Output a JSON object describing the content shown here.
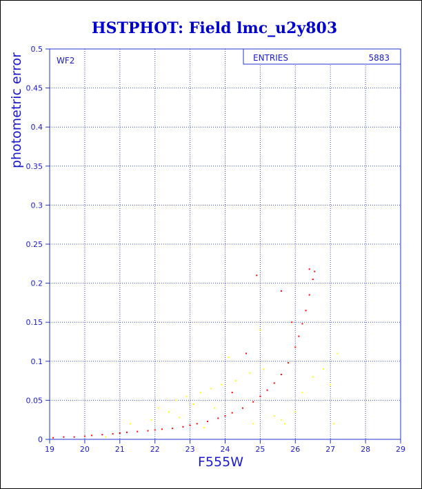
{
  "chart_data": {
    "type": "scatter",
    "title": "HSTPHOT: Field lmc_u2y803",
    "xlabel": "F555W",
    "ylabel": "photometric error",
    "xlim": [
      19,
      29
    ],
    "ylim": [
      0,
      0.5
    ],
    "xticks": [
      "19",
      "20",
      "21",
      "22",
      "23",
      "24",
      "25",
      "26",
      "27",
      "28",
      "29"
    ],
    "yticks": [
      "0",
      "0.05",
      "0.1",
      "0.15",
      "0.2",
      "0.25",
      "0.3",
      "0.35",
      "0.4",
      "0.45",
      "0.5"
    ],
    "grid": "dotted",
    "annotation": "WF2",
    "stats_box": {
      "label": "ENTRIES",
      "value": "5883"
    },
    "series": [
      {
        "color": "#ff0000",
        "points": [
          [
            19.1,
            0.002
          ],
          [
            19.4,
            0.003
          ],
          [
            19.7,
            0.003
          ],
          [
            20.0,
            0.004
          ],
          [
            20.2,
            0.005
          ],
          [
            20.5,
            0.006
          ],
          [
            20.8,
            0.007
          ],
          [
            21.0,
            0.008
          ],
          [
            21.2,
            0.009
          ],
          [
            21.5,
            0.01
          ],
          [
            21.8,
            0.011
          ],
          [
            22.0,
            0.012
          ],
          [
            22.2,
            0.013
          ],
          [
            22.5,
            0.014
          ],
          [
            22.8,
            0.016
          ],
          [
            23.0,
            0.018
          ],
          [
            23.2,
            0.02
          ],
          [
            23.5,
            0.023
          ],
          [
            23.8,
            0.027
          ],
          [
            24.0,
            0.03
          ],
          [
            24.2,
            0.034
          ],
          [
            24.5,
            0.04
          ],
          [
            24.8,
            0.048
          ],
          [
            25.0,
            0.055
          ],
          [
            25.2,
            0.063
          ],
          [
            25.4,
            0.072
          ],
          [
            25.6,
            0.083
          ],
          [
            25.8,
            0.098
          ],
          [
            26.0,
            0.118
          ],
          [
            26.1,
            0.132
          ],
          [
            26.2,
            0.148
          ],
          [
            26.3,
            0.165
          ],
          [
            26.4,
            0.185
          ],
          [
            26.5,
            0.205
          ],
          [
            26.55,
            0.215
          ],
          [
            24.9,
            0.21
          ],
          [
            25.6,
            0.19
          ],
          [
            25.9,
            0.15
          ],
          [
            24.2,
            0.06
          ],
          [
            24.6,
            0.11
          ],
          [
            26.4,
            0.218
          ]
        ]
      },
      {
        "color": "#ffff00",
        "points": [
          [
            20.6,
            0.003
          ],
          [
            21.3,
            0.02
          ],
          [
            21.9,
            0.025
          ],
          [
            22.1,
            0.04
          ],
          [
            22.4,
            0.035
          ],
          [
            22.6,
            0.05
          ],
          [
            22.9,
            0.055
          ],
          [
            23.1,
            0.045
          ],
          [
            23.3,
            0.06
          ],
          [
            23.6,
            0.065
          ],
          [
            23.9,
            0.07
          ],
          [
            24.3,
            0.075
          ],
          [
            24.7,
            0.085
          ],
          [
            25.1,
            0.09
          ],
          [
            25.4,
            0.03
          ],
          [
            25.7,
            0.02
          ],
          [
            26.2,
            0.06
          ],
          [
            26.5,
            0.08
          ],
          [
            26.8,
            0.09
          ],
          [
            27.0,
            0.07
          ],
          [
            27.2,
            0.11
          ],
          [
            26.0,
            0.035
          ],
          [
            24.8,
            0.02
          ],
          [
            23.7,
            0.04
          ],
          [
            24.1,
            0.105
          ],
          [
            25.0,
            0.14
          ],
          [
            25.6,
            0.025
          ],
          [
            23.4,
            0.015
          ],
          [
            22.7,
            0.028
          ],
          [
            27.1,
            0.02
          ]
        ]
      }
    ]
  }
}
